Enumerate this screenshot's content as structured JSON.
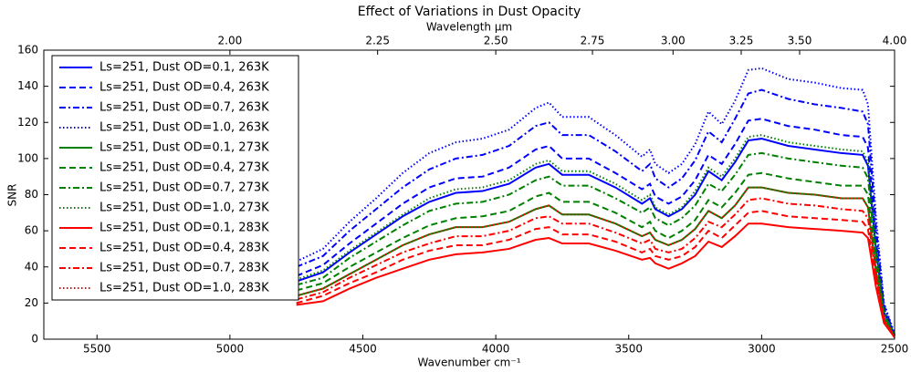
{
  "chart_data": {
    "type": "line",
    "title": "Effect of Variations in Dust Opacity",
    "x2label": "Wavelength μm",
    "xlabel": "Wavenumber cm⁻¹",
    "ylabel": "SNR",
    "xlim": [
      5700,
      2500
    ],
    "ylim": [
      0,
      160
    ],
    "xticks": [
      5500,
      5000,
      4500,
      4000,
      3500,
      3000,
      2500
    ],
    "yticks": [
      0,
      20,
      40,
      60,
      80,
      100,
      120,
      140,
      160
    ],
    "x2ticks": [
      {
        "value": 2.0,
        "label": "2.00"
      },
      {
        "value": 2.25,
        "label": "2.25"
      },
      {
        "value": 2.5,
        "label": "2.50"
      },
      {
        "value": 2.75,
        "label": "2.75"
      },
      {
        "value": 3.0,
        "label": "3.00"
      },
      {
        "value": 3.25,
        "label": "3.25"
      },
      {
        "value": 3.5,
        "label": "3.50"
      },
      {
        "value": 4.0,
        "label": "4.00"
      }
    ],
    "legend": "upper left",
    "x": [
      4750,
      4650,
      4550,
      4450,
      4350,
      4250,
      4150,
      4050,
      3950,
      3850,
      3800,
      3750,
      3650,
      3550,
      3450,
      3420,
      3400,
      3350,
      3300,
      3250,
      3200,
      3150,
      3100,
      3050,
      3000,
      2900,
      2800,
      2700,
      2620,
      2600,
      2570,
      2540,
      2500
    ],
    "series": [
      {
        "name": "Ls=251, Dust OD=0.1, 263K",
        "color": "#0000ff",
        "linestyle": "solid",
        "values": [
          32,
          37,
          48,
          58,
          68,
          76,
          81,
          82,
          86,
          95,
          97,
          91,
          91,
          84,
          75,
          78,
          72,
          68,
          72,
          80,
          93,
          88,
          98,
          110,
          111,
          107,
          105,
          103,
          102,
          96,
          50,
          15,
          2
        ]
      },
      {
        "name": "Ls=251, Dust OD=0.4, 263K",
        "color": "#0000ff",
        "linestyle": "dashed",
        "values": [
          35,
          41,
          53,
          64,
          75,
          84,
          89,
          90,
          95,
          105,
          107,
          100,
          100,
          92,
          83,
          86,
          79,
          75,
          79,
          88,
          102,
          97,
          108,
          121,
          122,
          118,
          116,
          113,
          112,
          106,
          55,
          17,
          2
        ]
      },
      {
        "name": "Ls=251, Dust OD=0.7, 263K",
        "color": "#0000ff",
        "linestyle": "dashdot",
        "values": [
          40,
          46,
          60,
          72,
          84,
          94,
          100,
          102,
          107,
          118,
          120,
          113,
          113,
          104,
          93,
          97,
          89,
          84,
          89,
          99,
          115,
          109,
          122,
          136,
          138,
          133,
          130,
          128,
          126,
          119,
          62,
          19,
          2
        ]
      },
      {
        "name": "Ls=251, Dust OD=1.0, 263K",
        "color": "#0000ff",
        "linestyle": "dotted",
        "values": [
          43,
          50,
          65,
          78,
          92,
          103,
          109,
          111,
          116,
          128,
          131,
          123,
          123,
          113,
          101,
          105,
          97,
          92,
          97,
          108,
          126,
          119,
          132,
          149,
          150,
          144,
          142,
          139,
          138,
          130,
          68,
          20,
          3
        ]
      },
      {
        "name": "Ls=251, Dust OD=0.1, 273K",
        "color": "#008000",
        "linestyle": "solid",
        "values": [
          24,
          28,
          36,
          44,
          52,
          58,
          62,
          62,
          65,
          72,
          74,
          69,
          69,
          64,
          57,
          59,
          55,
          52,
          55,
          61,
          71,
          67,
          74,
          84,
          84,
          81,
          80,
          78,
          78,
          73,
          38,
          11,
          2
        ]
      },
      {
        "name": "Ls=251, Dust OD=0.4, 273K",
        "color": "#008000",
        "linestyle": "dashed",
        "values": [
          27,
          31,
          40,
          48,
          56,
          63,
          67,
          68,
          71,
          79,
          81,
          76,
          76,
          70,
          62,
          65,
          60,
          56,
          60,
          66,
          77,
          73,
          81,
          91,
          92,
          89,
          87,
          85,
          85,
          80,
          42,
          12,
          2
        ]
      },
      {
        "name": "Ls=251, Dust OD=0.7, 273K",
        "color": "#008000",
        "linestyle": "dashdot",
        "values": [
          30,
          34,
          45,
          54,
          63,
          71,
          75,
          76,
          80,
          88,
          90,
          85,
          85,
          78,
          70,
          73,
          67,
          63,
          67,
          74,
          86,
          82,
          91,
          102,
          103,
          100,
          98,
          96,
          95,
          89,
          47,
          14,
          2
        ]
      },
      {
        "name": "Ls=251, Dust OD=1.0, 273K",
        "color": "#008000",
        "linestyle": "dotted",
        "values": [
          33,
          38,
          49,
          59,
          69,
          78,
          83,
          84,
          88,
          97,
          99,
          93,
          93,
          86,
          77,
          80,
          73,
          69,
          73,
          82,
          95,
          90,
          100,
          112,
          113,
          109,
          107,
          105,
          104,
          98,
          51,
          15,
          2
        ]
      },
      {
        "name": "Ls=251, Dust OD=0.1, 283K",
        "color": "#ff0000",
        "linestyle": "solid",
        "values": [
          19,
          21,
          28,
          34,
          39,
          44,
          47,
          48,
          50,
          55,
          56,
          53,
          53,
          49,
          44,
          45,
          42,
          39,
          42,
          46,
          54,
          51,
          57,
          64,
          64,
          62,
          61,
          60,
          59,
          56,
          29,
          9,
          1
        ]
      },
      {
        "name": "Ls=251, Dust OD=0.4, 283K",
        "color": "#ff0000",
        "linestyle": "dashed",
        "values": [
          20,
          24,
          31,
          37,
          44,
          49,
          52,
          52,
          55,
          61,
          62,
          58,
          58,
          54,
          48,
          50,
          46,
          44,
          46,
          51,
          60,
          56,
          63,
          70,
          71,
          68,
          67,
          66,
          65,
          61,
          32,
          10,
          1
        ]
      },
      {
        "name": "Ls=251, Dust OD=0.7, 283K",
        "color": "#ff0000",
        "linestyle": "dashdot",
        "values": [
          22,
          26,
          34,
          41,
          48,
          53,
          57,
          57,
          60,
          67,
          68,
          64,
          64,
          59,
          53,
          55,
          50,
          48,
          50,
          56,
          65,
          62,
          69,
          77,
          78,
          75,
          74,
          72,
          71,
          67,
          35,
          11,
          1
        ]
      },
      {
        "name": "Ls=251, Dust OD=1.0, 283K",
        "color": "#ff0000",
        "linestyle": "dotted",
        "values": [
          24,
          28,
          36,
          44,
          52,
          58,
          62,
          62,
          65,
          72,
          74,
          69,
          69,
          64,
          57,
          59,
          55,
          52,
          55,
          61,
          71,
          67,
          74,
          84,
          84,
          81,
          80,
          78,
          78,
          73,
          38,
          11,
          2
        ]
      }
    ]
  }
}
